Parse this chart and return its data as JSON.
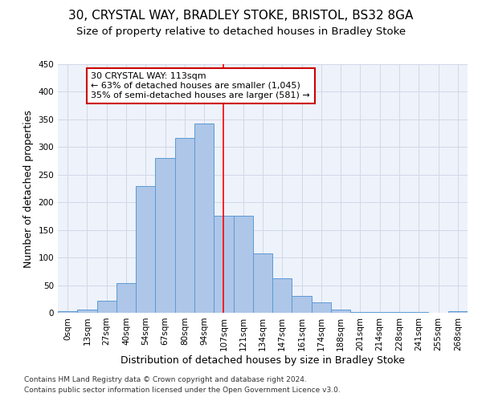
{
  "title": "30, CRYSTAL WAY, BRADLEY STOKE, BRISTOL, BS32 8GA",
  "subtitle": "Size of property relative to detached houses in Bradley Stoke",
  "xlabel": "Distribution of detached houses by size in Bradley Stoke",
  "ylabel": "Number of detached properties",
  "footnote1": "Contains HM Land Registry data © Crown copyright and database right 2024.",
  "footnote2": "Contains public sector information licensed under the Open Government Licence v3.0.",
  "bar_labels": [
    "0sqm",
    "13sqm",
    "27sqm",
    "40sqm",
    "54sqm",
    "67sqm",
    "80sqm",
    "94sqm",
    "107sqm",
    "121sqm",
    "134sqm",
    "147sqm",
    "161sqm",
    "174sqm",
    "188sqm",
    "201sqm",
    "214sqm",
    "228sqm",
    "241sqm",
    "255sqm",
    "268sqm"
  ],
  "bar_values": [
    3,
    6,
    22,
    54,
    229,
    280,
    316,
    343,
    175,
    175,
    107,
    62,
    30,
    19,
    6,
    2,
    2,
    2,
    1,
    0,
    3
  ],
  "bar_color": "#aec6e8",
  "bar_edge_color": "#5b9bd5",
  "ylim": [
    0,
    450
  ],
  "yticks": [
    0,
    50,
    100,
    150,
    200,
    250,
    300,
    350,
    400,
    450
  ],
  "grid_color": "#d0d8e8",
  "bg_color": "#eef2fa",
  "property_line_x": 8,
  "property_label": "30 CRYSTAL WAY: 113sqm",
  "annotation_line1": "← 63% of detached houses are smaller (1,045)",
  "annotation_line2": "35% of semi-detached houses are larger (581) →",
  "annotation_box_color": "#ffffff",
  "annotation_box_edge": "#cc0000",
  "title_fontsize": 11,
  "subtitle_fontsize": 9.5,
  "xlabel_fontsize": 9,
  "ylabel_fontsize": 9,
  "tick_fontsize": 7.5,
  "annotation_fontsize": 8
}
